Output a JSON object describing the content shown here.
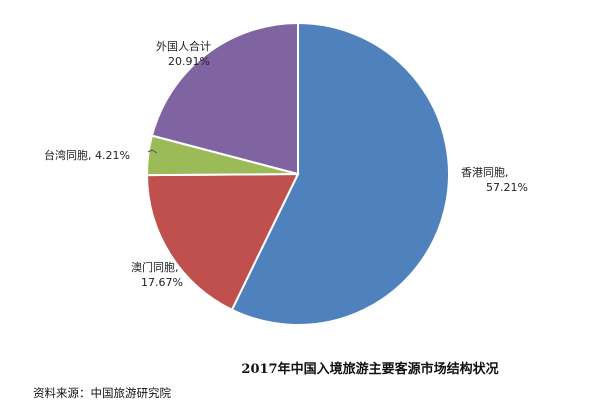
{
  "chart_data": {
    "type": "pie",
    "title": "2017年中国入境旅游主要客源市场结构状况",
    "slices": [
      {
        "name": "香港同胞",
        "label": "香港同胞,",
        "pct_label": "57.21%",
        "value": 57.21,
        "color": "#4F81BD"
      },
      {
        "name": "澳门同胞",
        "label": "澳门同胞,",
        "pct_label": "17.67%",
        "value": 17.67,
        "color": "#C0504D"
      },
      {
        "name": "台湾同胞",
        "label": "台湾同胞, 4.21%",
        "pct_label": "",
        "value": 4.21,
        "color": "#9BBB59"
      },
      {
        "name": "外国人合计",
        "label": "外国人合计",
        "pct_label": "20.91%",
        "value": 20.91,
        "color": "#8064A2"
      }
    ]
  },
  "source_note": "资料来源：中国旅游研究院"
}
